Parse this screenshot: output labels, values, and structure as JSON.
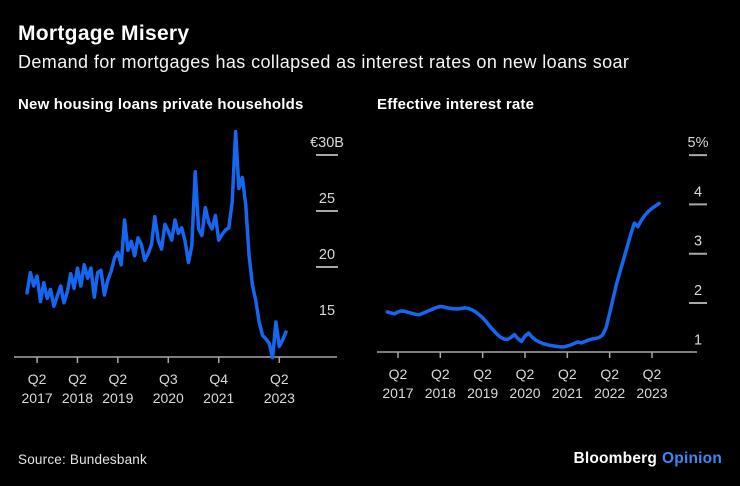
{
  "header": {
    "title": "Mortgage Misery",
    "subtitle": "Demand for mortgages has collapsed as interest rates on new loans soar"
  },
  "footer": {
    "source": "Source: Bundesbank",
    "brand": "Bloomberg",
    "brand_suffix": "Opinion"
  },
  "colors": {
    "background": "#000000",
    "line": "#1567f2",
    "axis": "#a8a8a8",
    "tick_label": "#d9d9d9",
    "title": "#ffffff",
    "opinion_blue": "#3f87f6"
  },
  "chart_data": [
    {
      "id": "loans",
      "type": "line",
      "title": "New housing loans private households",
      "x_start": "2017-01",
      "x_end": "2023-06",
      "x_unit": "month",
      "ylim": [
        12,
        32.5
      ],
      "grid": false,
      "legend": "none",
      "x_ticks": [
        {
          "quarter": "Q2",
          "year": "2017",
          "index": 3
        },
        {
          "quarter": "Q2",
          "year": "2018",
          "index": 15
        },
        {
          "quarter": "Q2",
          "year": "2019",
          "index": 27
        },
        {
          "quarter": "Q3",
          "year": "2020",
          "index": 42
        },
        {
          "quarter": "Q4",
          "year": "2021",
          "index": 57
        },
        {
          "quarter": "Q2",
          "year": "2023",
          "index": 75
        }
      ],
      "y_ticks": [
        {
          "label": "€30B",
          "value": 30
        },
        {
          "label": "25",
          "value": 25
        },
        {
          "label": "20",
          "value": 20
        },
        {
          "label": "15",
          "value": 15
        }
      ],
      "values": [
        17.7,
        19.5,
        18.3,
        19.2,
        16.9,
        18.6,
        17.2,
        18.0,
        16.5,
        17.4,
        18.3,
        16.8,
        17.8,
        19.4,
        18.1,
        19.9,
        18.3,
        20.2,
        19.0,
        19.9,
        17.3,
        19.5,
        19.7,
        17.5,
        18.8,
        19.6,
        20.8,
        21.3,
        20.2,
        24.2,
        21.5,
        22.3,
        21.0,
        22.6,
        22.0,
        20.6,
        21.2,
        22.0,
        24.5,
        22.4,
        21.6,
        23.8,
        23.2,
        22.4,
        24.2,
        23.0,
        23.5,
        22.3,
        20.4,
        21.9,
        28.5,
        23.4,
        22.8,
        25.3,
        24.0,
        23.4,
        24.6,
        22.4,
        22.9,
        23.3,
        23.5,
        25.8,
        32.1,
        27.0,
        28.0,
        25.6,
        21.1,
        18.4,
        17.0,
        15.1,
        13.9,
        13.6,
        13.2,
        11.9,
        15.1,
        12.9,
        13.5,
        14.2
      ]
    },
    {
      "id": "rates",
      "type": "line",
      "title": "Effective interest rate",
      "x_start": "2017-01",
      "x_end": "2023-06",
      "x_unit": "month",
      "ylim": [
        1,
        5.6
      ],
      "grid": false,
      "legend": "none",
      "x_ticks": [
        {
          "quarter": "Q2",
          "year": "2017",
          "index": 3
        },
        {
          "quarter": "Q2",
          "year": "2018",
          "index": 15
        },
        {
          "quarter": "Q2",
          "year": "2019",
          "index": 27
        },
        {
          "quarter": "Q2",
          "year": "2020",
          "index": 39
        },
        {
          "quarter": "Q2",
          "year": "2021",
          "index": 51
        },
        {
          "quarter": "Q2",
          "year": "2022",
          "index": 63
        },
        {
          "quarter": "Q2",
          "year": "2023",
          "index": 75
        }
      ],
      "y_ticks": [
        {
          "label": "5%",
          "value": 5
        },
        {
          "label": "4",
          "value": 4
        },
        {
          "label": "3",
          "value": 3
        },
        {
          "label": "2",
          "value": 2
        },
        {
          "label": "1",
          "value": 1
        }
      ],
      "values": [
        1.82,
        1.8,
        1.78,
        1.82,
        1.84,
        1.83,
        1.81,
        1.79,
        1.77,
        1.76,
        1.79,
        1.82,
        1.85,
        1.88,
        1.91,
        1.93,
        1.92,
        1.9,
        1.89,
        1.88,
        1.88,
        1.89,
        1.9,
        1.89,
        1.86,
        1.82,
        1.76,
        1.7,
        1.62,
        1.53,
        1.45,
        1.37,
        1.31,
        1.27,
        1.26,
        1.3,
        1.36,
        1.28,
        1.22,
        1.33,
        1.39,
        1.31,
        1.25,
        1.21,
        1.18,
        1.16,
        1.14,
        1.13,
        1.12,
        1.11,
        1.11,
        1.13,
        1.15,
        1.18,
        1.21,
        1.19,
        1.22,
        1.25,
        1.27,
        1.28,
        1.3,
        1.35,
        1.5,
        1.8,
        2.1,
        2.4,
        2.65,
        2.9,
        3.15,
        3.4,
        3.62,
        3.55,
        3.68,
        3.78,
        3.86,
        3.92,
        3.97,
        4.02
      ]
    }
  ]
}
